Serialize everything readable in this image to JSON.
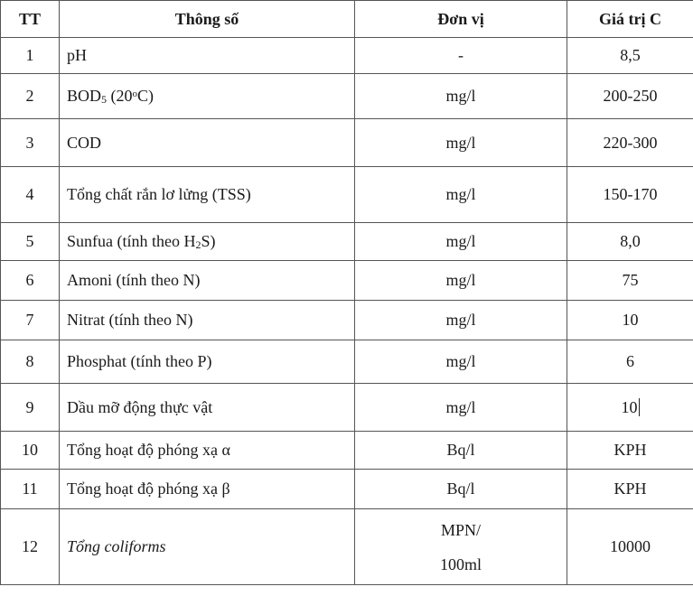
{
  "header": {
    "tt": "TT",
    "param": "Thông số",
    "unit": "Đơn vị",
    "value": "Giá trị C"
  },
  "rows": [
    {
      "tt": "1",
      "name": "pH",
      "unit": "-",
      "value": "8,5"
    },
    {
      "tt": "2",
      "name_pre": "BOD",
      "name_sub": "5",
      "name_mid": " (20",
      "name_sup": "o",
      "name_post": "C)",
      "unit": "mg/l",
      "value": "200-250"
    },
    {
      "tt": "3",
      "name": "COD",
      "unit": "mg/l",
      "value": "220-300"
    },
    {
      "tt": "4",
      "name": "Tổng chất rắn lơ lửng (TSS)",
      "unit": "mg/l",
      "value": "150-170"
    },
    {
      "tt": "5",
      "name_pre": "Sunfua (tính theo H",
      "name_sub": "2",
      "name_post": "S)",
      "unit": "mg/l",
      "value": "8,0"
    },
    {
      "tt": "6",
      "name": "Amoni (tính theo N)",
      "unit": "mg/l",
      "value": "75"
    },
    {
      "tt": "7",
      "name": "Nitrat (tính theo N)",
      "unit": "mg/l",
      "value": "10"
    },
    {
      "tt": "8",
      "name": "Phosphat (tính theo P)",
      "unit": "mg/l",
      "value": "6"
    },
    {
      "tt": "9",
      "name": "Dầu mỡ động thực vật",
      "unit": "mg/l",
      "value": "10"
    },
    {
      "tt": "10",
      "name": "Tổng hoạt độ phóng xạ α",
      "unit": "Bq/l",
      "value": "KPH"
    },
    {
      "tt": "11",
      "name": "Tổng hoạt độ phóng xạ β",
      "unit": "Bq/l",
      "value": "KPH"
    },
    {
      "tt": "12",
      "name": "Tổng coliforms",
      "unit_line1": "MPN/",
      "unit_line2": "100ml",
      "value": "10000"
    }
  ]
}
